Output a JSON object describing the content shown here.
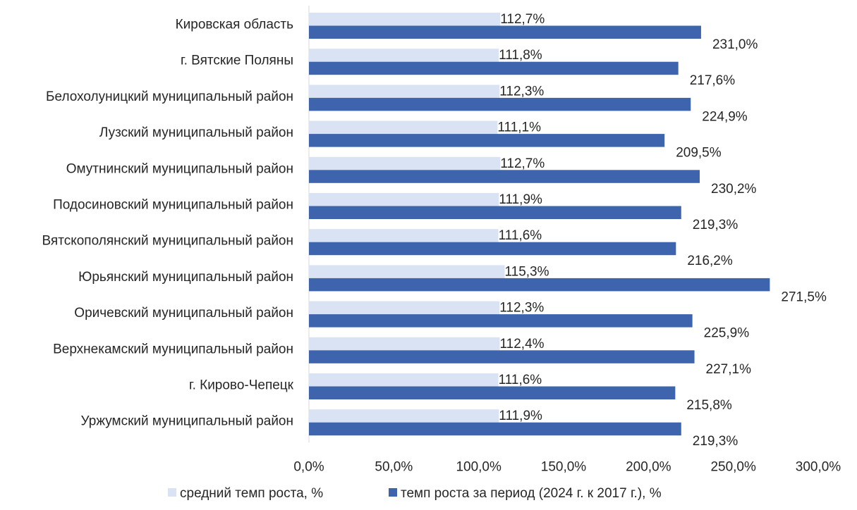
{
  "chart_data": {
    "type": "bar",
    "orientation": "horizontal",
    "categories": [
      "Кировская область",
      "г. Вятские Поляны",
      "Белохолуницкий муниципальный район",
      "Лузский муниципальный район",
      "Омутнинский муниципальный район",
      "Подосиновский муниципальный район",
      "Вятскополянский муниципальный район",
      "Юрьянский муниципальный район",
      "Оричевский муниципальный район",
      "Верхнекамский муниципальный район",
      "г. Кирово-Чепецк",
      "Уржумский муниципальный район"
    ],
    "series": [
      {
        "name": "средний темп роста, %",
        "color": "#dae3f3",
        "values": [
          112.7,
          111.8,
          112.3,
          111.1,
          112.7,
          111.9,
          111.6,
          115.3,
          112.3,
          112.4,
          111.6,
          111.9
        ],
        "labels": [
          "112,7%",
          "111,8%",
          "112,3%",
          "111,1%",
          "112,7%",
          "111,9%",
          "111,6%",
          "115,3%",
          "112,3%",
          "112,4%",
          "111,6%",
          "111,9%"
        ]
      },
      {
        "name": "темп роста за период (2024 г. к 2017 г.), %",
        "color": "#3e64ad",
        "values": [
          231.0,
          217.6,
          224.9,
          209.5,
          230.2,
          219.3,
          216.2,
          271.5,
          225.9,
          227.1,
          215.8,
          219.3
        ],
        "labels": [
          "231,0%",
          "217,6%",
          "224,9%",
          "209,5%",
          "230,2%",
          "219,3%",
          "216,2%",
          "271,5%",
          "225,9%",
          "227,1%",
          "215,8%",
          "219,3%"
        ]
      }
    ],
    "xlim": [
      0,
      300
    ],
    "xticks": [
      0,
      50,
      100,
      150,
      200,
      250,
      300
    ],
    "xtick_labels": [
      "0,0%",
      "50,0%",
      "100,0%",
      "150,0%",
      "200,0%",
      "250,0%",
      "300,0%"
    ],
    "grid": false,
    "legend_position": "bottom",
    "title": "",
    "xlabel": "",
    "ylabel": ""
  }
}
